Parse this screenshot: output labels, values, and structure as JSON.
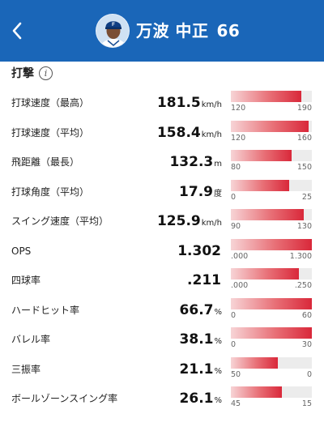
{
  "header": {
    "player_name": "万波 中正",
    "uniform_number": "66",
    "background_color": "#1a66b8"
  },
  "section": {
    "title": "打撃",
    "info_icon": "info-icon"
  },
  "colors": {
    "bar_fill_high": "#d9283a",
    "bar_fill_low": "#f7d4d6",
    "bar_track": "#ececec"
  },
  "stats": [
    {
      "label": "打球速度（最高）",
      "value": "181.5",
      "unit": "km/h",
      "scale_min": "120",
      "scale_max": "190",
      "fill": 0.87
    },
    {
      "label": "打球速度（平均）",
      "value": "158.4",
      "unit": "km/h",
      "scale_min": "120",
      "scale_max": "160",
      "fill": 0.96
    },
    {
      "label": "飛距離（最長）",
      "value": "132.3",
      "unit": "m",
      "scale_min": "80",
      "scale_max": "150",
      "fill": 0.75
    },
    {
      "label": "打球角度（平均）",
      "value": "17.9",
      "unit": "度",
      "scale_min": "0",
      "scale_max": "25",
      "fill": 0.72
    },
    {
      "label": "スイング速度（平均）",
      "value": "125.9",
      "unit": "km/h",
      "scale_min": "90",
      "scale_max": "130",
      "fill": 0.9
    },
    {
      "label": "OPS",
      "value": "1.302",
      "unit": "",
      "scale_min": ".000",
      "scale_max": "1.300",
      "fill": 1.0
    },
    {
      "label": "四球率",
      "value": ".211",
      "unit": "",
      "scale_min": ".000",
      "scale_max": ".250",
      "fill": 0.84
    },
    {
      "label": "ハードヒット率",
      "value": "66.7",
      "unit": "%",
      "scale_min": "0",
      "scale_max": "60",
      "fill": 1.0
    },
    {
      "label": "バレル率",
      "value": "38.1",
      "unit": "%",
      "scale_min": "0",
      "scale_max": "30",
      "fill": 1.0
    },
    {
      "label": "三振率",
      "value": "21.1",
      "unit": "%",
      "scale_min": "50",
      "scale_max": "0",
      "fill": 0.58
    },
    {
      "label": "ボールゾーンスイング率",
      "value": "26.1",
      "unit": "%",
      "scale_min": "45",
      "scale_max": "15",
      "fill": 0.63
    }
  ]
}
